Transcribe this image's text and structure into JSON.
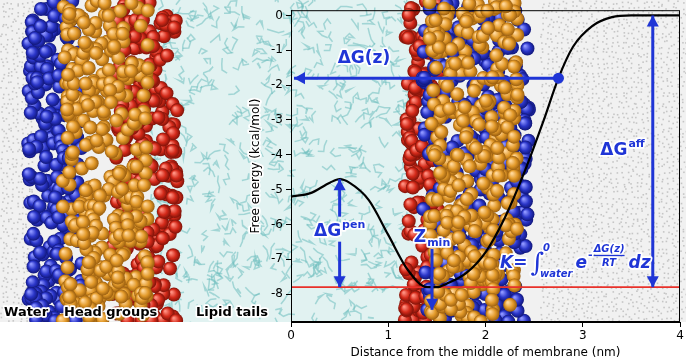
{
  "chart_data": {
    "type": "line",
    "x_label": "Distance from the middle of membrane (nm)",
    "y_label": "Free energy (kcal/mol)",
    "x": [
      0,
      0.2,
      0.4,
      0.5,
      0.6,
      0.8,
      1.0,
      1.2,
      1.4,
      1.5,
      1.6,
      1.8,
      2.0,
      2.2,
      2.4,
      2.6,
      2.75,
      2.9,
      3.1,
      3.3,
      3.5,
      3.75,
      4.0
    ],
    "values": [
      -5.2,
      -5.1,
      -4.8,
      -4.7,
      -4.8,
      -5.3,
      -6.3,
      -7.3,
      -7.8,
      -7.8,
      -7.7,
      -7.4,
      -6.8,
      -5.8,
      -4.5,
      -3.0,
      -1.8,
      -0.9,
      -0.3,
      -0.05,
      0,
      0,
      0
    ],
    "color": "#000000",
    "xlim": [
      0,
      4
    ],
    "ylim": [
      -8.8,
      0.15
    ],
    "xticks": [
      0,
      1,
      2,
      3,
      4
    ],
    "yticks": [
      -8,
      -7,
      -6,
      -5,
      -4,
      -3,
      -2,
      -1,
      0
    ],
    "grid": false,
    "reference_line": {
      "value": -7.8,
      "color": "#e8312a"
    },
    "regions": [
      "Water",
      "Head groups",
      "Lipid tails"
    ],
    "annotations": {
      "color": "#1f35d6",
      "delta_g": {
        "text": "ΔG(z)",
        "x": 2.75,
        "y": -1.8
      },
      "affinity": {
        "base": "ΔG",
        "superscript": "aff",
        "from": 0,
        "to": -7.8
      },
      "penetration": {
        "base": "ΔG",
        "superscript": "pen",
        "from": -4.7,
        "to": -7.8
      },
      "z_min": {
        "base": "Z",
        "subscript": "min",
        "value": 1.45
      },
      "formula": {
        "lhs": "K=",
        "integral": "∫",
        "upper": "0",
        "lower": "water",
        "base": "e",
        "exponent_sign": "-",
        "numerator": "ΔG(z)",
        "denominator": "RT",
        "differential": "dz"
      }
    }
  }
}
